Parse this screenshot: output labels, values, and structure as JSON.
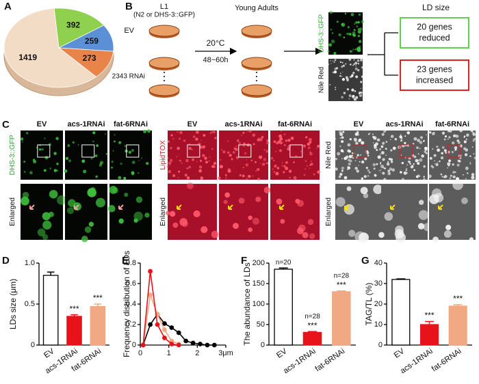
{
  "panel_labels": [
    "A",
    "B",
    "C",
    "D",
    "E",
    "F",
    "G"
  ],
  "chart_data": [
    {
      "type": "pie",
      "values": [
        392,
        259,
        273,
        1419
      ],
      "colors": [
        "#8fd14f",
        "#5b8fd6",
        "#e8834a",
        "#f3dcc6"
      ]
    },
    {
      "type": "bar",
      "ylabel": "LDs size (μm)",
      "categories": [
        "EV",
        "acs-1RNAi",
        "fat-6RNAi"
      ],
      "values": [
        0.85,
        0.35,
        0.47
      ],
      "errors": [
        0.04,
        0.02,
        0.03
      ],
      "colors": [
        "#ffffff",
        "#e8121a",
        "#f0a982"
      ],
      "ylim": [
        0,
        1
      ],
      "yticks": [
        0,
        0.5,
        {
          "value": 1,
          "label": "1.0"
        }
      ],
      "annotations": [
        {
          "at": 1,
          "text": "***"
        },
        {
          "at": 2,
          "text": "***"
        }
      ]
    },
    {
      "type": "line",
      "ylabel": "Frequency distribution of LDs",
      "x": [
        0.1,
        0.35,
        0.6,
        0.85,
        1.1,
        1.35,
        1.6,
        1.85,
        2.1,
        2.35,
        2.6
      ],
      "xlim": [
        0,
        3
      ],
      "xticks": [
        0,
        1,
        2,
        {
          "value": 3,
          "label": "3μm"
        }
      ],
      "ylim": [
        0,
        0.8
      ],
      "yticks": [
        0,
        0.2,
        0.4,
        0.6,
        0.8
      ],
      "series": [
        {
          "color": "#000000",
          "values": [
            0,
            0.2,
            0.3,
            0.21,
            0.17,
            0.12,
            0.04,
            0.02,
            0.01,
            0,
            0
          ]
        },
        {
          "color": "#f0a982",
          "values": [
            0,
            0.49,
            0.3,
            0.15,
            0.04,
            0.01,
            null,
            null,
            null,
            null,
            null
          ]
        },
        {
          "color": "#e8121a",
          "values": [
            0,
            0.72,
            0.2,
            0.07,
            0.01,
            0,
            null,
            null,
            null,
            null,
            null
          ]
        }
      ]
    },
    {
      "type": "bar",
      "ylabel": "The abundance of LDs",
      "categories": [
        "EV",
        "acs-1RNAi",
        "fat-6RNAi"
      ],
      "values": [
        185,
        31,
        130
      ],
      "errors": [
        3,
        2,
        2
      ],
      "colors": [
        "#ffffff",
        "#e8121a",
        "#f0a982"
      ],
      "ylim": [
        0,
        200
      ],
      "yticks": [
        0,
        50,
        100,
        150,
        200
      ],
      "n_labels": [
        "n=20",
        "n=28",
        "n=28"
      ],
      "annotations": [
        {
          "at": 1,
          "text": "***"
        },
        {
          "at": 2,
          "text": "***"
        }
      ]
    },
    {
      "type": "bar",
      "ylabel": "TAG/TL (%)",
      "categories": [
        "EV",
        "acs-1RNAi",
        "fat-6RNAi"
      ],
      "values": [
        32,
        10,
        19
      ],
      "errors": [
        0.3,
        1.5,
        0.7
      ],
      "colors": [
        "#ffffff",
        "#e8121a",
        "#f0a982"
      ],
      "ylim": [
        0,
        40
      ],
      "yticks": [
        0,
        10,
        20,
        30,
        40
      ],
      "annotations": [
        {
          "at": 1,
          "text": "***"
        },
        {
          "at": 2,
          "text": "***"
        }
      ]
    }
  ],
  "schematic": {
    "l1": "L1",
    "strain": "(N2 or DHS-3::GFP)",
    "young_adults": "Young Adults",
    "ev": "EV",
    "rnai": "2343 RNAi",
    "temperature": "20°C",
    "duration": "48~60h",
    "gfp_label": "DHS-3::GFP",
    "nile_red_label": "Nile Red",
    "ld_size": "LD size",
    "reduced": [
      "20 genes",
      "reduced"
    ],
    "increased": [
      "23 genes",
      "increased"
    ]
  },
  "imaging": [
    {
      "stain": "DHS-3::GFP",
      "conditions": [
        "EV",
        "acs-1RNAi",
        "fat-6RNAi"
      ],
      "enlarged": "Enlarged"
    },
    {
      "stain": "LipidTOX",
      "conditions": [
        "EV",
        "acs-1RNAi",
        "fat-6RNAi"
      ],
      "enlarged": "Enlarged"
    },
    {
      "stain": "Nile Red",
      "conditions": [
        "EV",
        "acs-1RNAi",
        "fat-6RNAi"
      ],
      "enlarged": "Enlarged"
    }
  ]
}
